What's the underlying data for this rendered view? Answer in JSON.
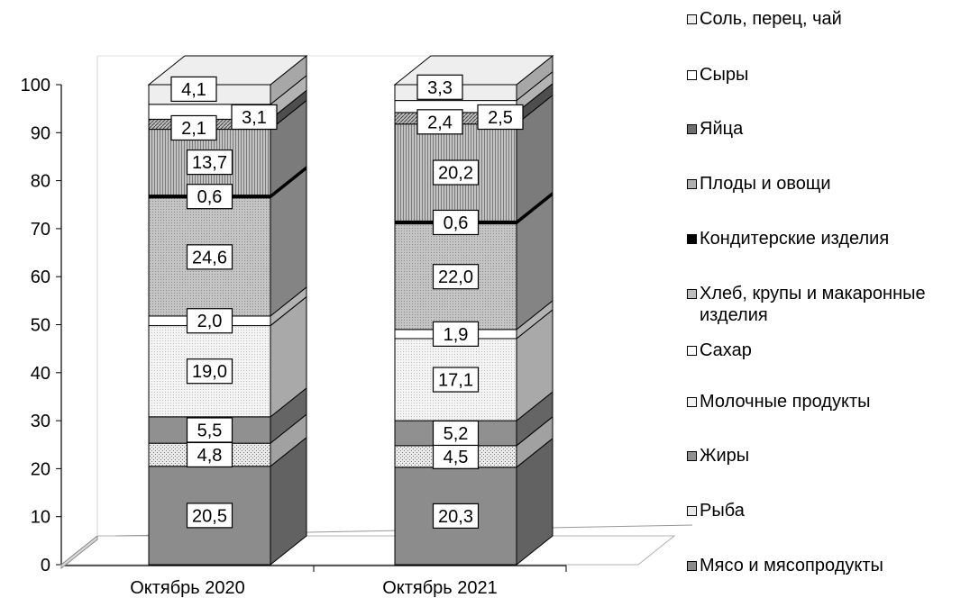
{
  "chart_data": {
    "type": "bar",
    "stacked": true,
    "three_d": true,
    "categories": [
      "Октябрь 2020",
      "Октябрь 2021"
    ],
    "ylim": [
      0,
      100
    ],
    "yticks": [
      "0",
      "10",
      "20",
      "30",
      "40",
      "50",
      "60",
      "70",
      "80",
      "90",
      "100"
    ],
    "series": [
      {
        "name": "Мясо и мясопродукты",
        "values": [
          20.5,
          20.3
        ],
        "labels": [
          "20,5",
          "20,3"
        ],
        "color": "#8c8c8c",
        "pattern": "solid"
      },
      {
        "name": "Рыба",
        "values": [
          4.8,
          4.5
        ],
        "labels": [
          "4,8",
          "4,5"
        ],
        "color": "#e6e6e6",
        "pattern": "dots"
      },
      {
        "name": "Жиры",
        "values": [
          5.5,
          5.2
        ],
        "labels": [
          "5,5",
          "5,2"
        ],
        "color": "#909090",
        "pattern": "solid"
      },
      {
        "name": "Молочные продукты",
        "values": [
          19.0,
          17.1
        ],
        "labels": [
          "19,0",
          "17,1"
        ],
        "color": "#f2f2f2",
        "pattern": "fine-dots"
      },
      {
        "name": "Сахар",
        "values": [
          2.0,
          1.9
        ],
        "labels": [
          "2,0",
          "1,9"
        ],
        "color": "#ffffff",
        "pattern": "solid"
      },
      {
        "name": "Хлеб, крупы и макаронные изделия",
        "values": [
          24.6,
          22.0
        ],
        "labels": [
          "24,6",
          "22,0"
        ],
        "color": "#bdbdbd",
        "pattern": "fine-dots"
      },
      {
        "name": "Кондитерские изделия",
        "values": [
          0.6,
          0.6
        ],
        "labels": [
          "0,6",
          "0,6"
        ],
        "color": "#000000",
        "pattern": "solid"
      },
      {
        "name": "Плоды и овощи",
        "values": [
          13.7,
          20.2
        ],
        "labels": [
          "13,7",
          "20,2"
        ],
        "color": "#b0b0b0",
        "pattern": "vertical-lines"
      },
      {
        "name": "Яйца",
        "values": [
          2.1,
          2.4
        ],
        "labels": [
          "2,1",
          "2,4"
        ],
        "color": "#6f6f6f",
        "pattern": "diagonal"
      },
      {
        "name": "Сыры",
        "values": [
          3.1,
          2.5
        ],
        "labels": [
          "3,1",
          "2,5"
        ],
        "color": "#ffffff",
        "pattern": "solid"
      },
      {
        "name": "Соль, перец, чай",
        "values": [
          4.1,
          3.3
        ],
        "labels": [
          "4,1",
          "3,3"
        ],
        "color": "#eeeeee",
        "pattern": "solid"
      }
    ],
    "legend_placement": "right",
    "grid": false
  }
}
